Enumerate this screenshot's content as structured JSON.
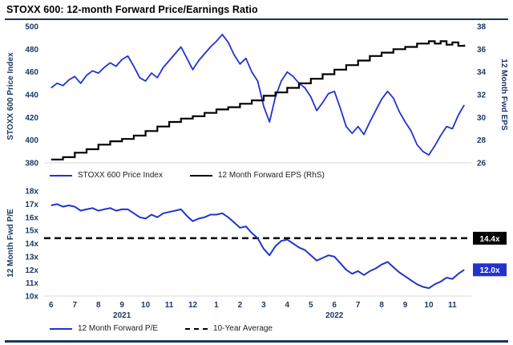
{
  "page": {
    "title": "STOXX 600: 12-month Forward Price/Earnings Ratio"
  },
  "colors": {
    "line_blue": "#2233cc",
    "line_black": "#000000",
    "axis_text": "#1f3864",
    "rule_navy": "#17365d",
    "callout_black_bg": "#000000",
    "callout_blue_bg": "#2233cc"
  },
  "chart_data": [
    {
      "type": "line",
      "panel": "top",
      "x_unit": "months (Jun 2021 = 0 through Nov 2022 = 17)",
      "left_axis": {
        "label": "STOXX 600 Price Index",
        "min": 380,
        "max": 500,
        "ticks": [
          380,
          400,
          420,
          440,
          460,
          480,
          500
        ]
      },
      "right_axis": {
        "label": "12 Month Fwd EPS",
        "min": 26,
        "max": 38,
        "ticks": [
          26,
          28,
          30,
          32,
          34,
          36,
          38
        ]
      },
      "series": [
        {
          "name": "STOXX 600 Price Index",
          "axis": "left",
          "color": "#2233cc",
          "style": "solid",
          "x_start": 0,
          "x_step": 0.25,
          "y": [
            446,
            450,
            448,
            453,
            456,
            450,
            457,
            461,
            459,
            464,
            468,
            465,
            471,
            474,
            465,
            455,
            452,
            459,
            455,
            464,
            470,
            476,
            482,
            472,
            462,
            470,
            476,
            482,
            487,
            493,
            486,
            475,
            467,
            472,
            460,
            452,
            430,
            416,
            438,
            452,
            460,
            456,
            450,
            446,
            438,
            426,
            433,
            441,
            443,
            428,
            412,
            406,
            412,
            405,
            416,
            426,
            436,
            443,
            437,
            425,
            416,
            408,
            396,
            390,
            387,
            395,
            404,
            412,
            410,
            422,
            431
          ]
        },
        {
          "name": "12 Month Forward EPS (RhS)",
          "axis": "right",
          "color": "#000000",
          "style": "step",
          "x": [
            0,
            0.5,
            1,
            1.5,
            2,
            2.5,
            3,
            3.5,
            4,
            4.5,
            5,
            5.5,
            6,
            6.5,
            7,
            7.5,
            8,
            8.5,
            9,
            9.5,
            10,
            10.5,
            11,
            11.5,
            12,
            12.5,
            13,
            13.5,
            14,
            14.5,
            15,
            15.5,
            16,
            16.25,
            16.5,
            16.75,
            17,
            17.25,
            17.5
          ],
          "y": [
            26.3,
            26.5,
            26.9,
            27.2,
            27.6,
            27.9,
            28.1,
            28.4,
            28.8,
            29.2,
            29.6,
            29.9,
            30.1,
            30.4,
            30.7,
            30.9,
            31.2,
            31.5,
            31.9,
            32.2,
            32.6,
            33,
            33.4,
            33.8,
            34.2,
            34.6,
            35,
            35.4,
            35.7,
            36,
            36.2,
            36.5,
            36.7,
            36.5,
            36.7,
            36.4,
            36.6,
            36.3,
            36.4
          ]
        }
      ],
      "legend": [
        {
          "label": "STOXX 600 Price Index",
          "color": "#2233cc",
          "dash": false
        },
        {
          "label": "12 Month Forward EPS (RhS)",
          "color": "#000000",
          "dash": false
        }
      ]
    },
    {
      "type": "line",
      "panel": "bottom",
      "left_axis": {
        "label": "12 Month Fwd P/E",
        "min": 10,
        "max": 18,
        "ticks": [
          "10x",
          "11x",
          "12x",
          "13x",
          "14x",
          "15x",
          "16x",
          "17x",
          "18x"
        ]
      },
      "x_axis": {
        "month_ticks": [
          "6",
          "7",
          "8",
          "9",
          "10",
          "11",
          "12",
          "1",
          "2",
          "3",
          "4",
          "5",
          "6",
          "7",
          "8",
          "9",
          "10",
          "11"
        ],
        "years": [
          {
            "label": "2021",
            "center_index": 3
          },
          {
            "label": "2022",
            "center_index": 12
          }
        ]
      },
      "series": [
        {
          "name": "12 Month Forward P/E",
          "color": "#2233cc",
          "style": "solid",
          "x_start": 0,
          "x_step": 0.25,
          "y": [
            16.9,
            17,
            16.8,
            16.9,
            16.8,
            16.5,
            16.6,
            16.7,
            16.5,
            16.6,
            16.7,
            16.5,
            16.6,
            16.6,
            16.3,
            16,
            15.9,
            16.2,
            16,
            16.3,
            16.4,
            16.5,
            16.6,
            16.1,
            15.7,
            15.9,
            16,
            16.2,
            16.2,
            16.3,
            16,
            15.6,
            15.2,
            15.3,
            14.8,
            14.4,
            13.6,
            13.1,
            13.8,
            14.2,
            14.3,
            14,
            13.7,
            13.5,
            13.1,
            12.7,
            12.9,
            13.1,
            13,
            12.5,
            12,
            11.7,
            11.9,
            11.6,
            11.9,
            12.1,
            12.4,
            12.6,
            12.2,
            11.8,
            11.5,
            11.2,
            10.9,
            10.7,
            10.6,
            10.9,
            11.1,
            11.4,
            11.3,
            11.7,
            12
          ]
        },
        {
          "name": "10-Year Average",
          "color": "#000000",
          "style": "dashed-horizontal",
          "value": 14.4
        }
      ],
      "annotations": [
        {
          "text": "14.4x",
          "value": 14.4,
          "bg": "#000000",
          "fg": "#ffffff"
        },
        {
          "text": "12.0x",
          "value": 12.0,
          "bg": "#2233cc",
          "fg": "#ffffff"
        }
      ],
      "legend": [
        {
          "label": "12 Month Forward P/E",
          "color": "#2233cc",
          "dash": false
        },
        {
          "label": "10-Year Average",
          "color": "#000000",
          "dash": true
        }
      ]
    }
  ]
}
